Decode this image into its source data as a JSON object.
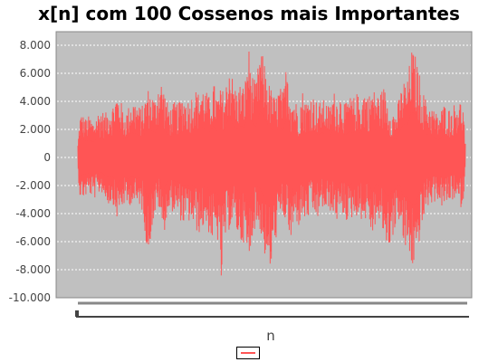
{
  "chart_data": {
    "type": "line",
    "title": "x[n] com 100 Cossenos mais Importantes",
    "xlabel": "n",
    "ylabel": "",
    "ylim": [
      -10000,
      9000
    ],
    "yticks": [
      {
        "value": 8000,
        "label": "8.000"
      },
      {
        "value": 6000,
        "label": "6.000"
      },
      {
        "value": 4000,
        "label": "4.000"
      },
      {
        "value": 2000,
        "label": "2.000"
      },
      {
        "value": 0,
        "label": "0"
      },
      {
        "value": -2000,
        "label": "-2.000"
      },
      {
        "value": -4000,
        "label": "-4.000"
      },
      {
        "value": -6000,
        "label": "-6.000"
      },
      {
        "value": -8000,
        "label": "-8.000"
      },
      {
        "value": -10000,
        "label": "-10.000"
      }
    ],
    "grid": true,
    "legend_position": "bottom-center",
    "series": [
      {
        "name": "",
        "color": "#ff5555",
        "envelope_n": [
          0,
          0.5,
          1,
          2,
          3,
          4,
          5,
          6,
          7,
          8,
          9,
          10,
          11,
          12,
          13,
          14,
          15,
          16,
          17,
          18,
          19,
          20,
          21,
          22,
          23,
          24,
          25,
          26,
          27,
          28,
          29,
          30,
          31,
          32,
          33,
          34,
          35,
          36,
          37,
          38,
          39,
          40,
          41,
          42,
          43,
          44,
          45,
          46,
          47,
          48,
          49,
          50,
          51,
          52,
          53,
          54,
          55,
          56,
          57,
          58,
          59,
          60,
          61,
          62,
          63,
          64,
          65,
          66,
          67,
          68,
          69,
          70,
          71,
          72,
          73,
          74,
          75,
          76,
          77,
          78,
          79,
          80,
          81,
          82,
          83,
          84,
          85,
          86,
          87,
          88,
          89,
          90,
          91,
          92,
          93,
          94,
          95,
          96,
          97,
          98,
          99,
          99.5,
          100
        ],
        "envelope_max": [
          1000,
          3000,
          3200,
          2800,
          3000,
          2600,
          3200,
          3500,
          3100,
          3600,
          3800,
          4600,
          4200,
          3000,
          3600,
          4200,
          4000,
          3600,
          3800,
          5000,
          4600,
          4200,
          5900,
          5200,
          4000,
          3600,
          4000,
          3900,
          4500,
          4200,
          4100,
          5100,
          4600,
          5200,
          4800,
          4300,
          5400,
          4400,
          5000,
          4600,
          7200,
          5600,
          4800,
          5400,
          5000,
          8100,
          6000,
          5200,
          7900,
          7000,
          5600,
          4800,
          4200,
          5200,
          4600,
          7200,
          4400,
          4200,
          3600,
          4800,
          4000,
          4600,
          4400,
          3800,
          4200,
          4000,
          3600,
          4800,
          4200,
          4600,
          3800,
          4400,
          4200,
          4600,
          4100,
          5000,
          4400,
          5000,
          4600,
          4600,
          5100,
          4000,
          3400,
          3200,
          4400,
          5600,
          5300,
          7800,
          7400,
          6200,
          4800,
          4000,
          3800,
          3400,
          3000,
          3600,
          4000,
          3400,
          3800,
          4200,
          4000,
          3500,
          1000
        ],
        "envelope_min": [
          -1000,
          -2800,
          -3000,
          -2800,
          -2600,
          -3000,
          -2800,
          -2400,
          -3000,
          -3400,
          -3200,
          -4400,
          -3800,
          -3400,
          -3600,
          -3200,
          -3600,
          -3400,
          -4200,
          -7600,
          -5200,
          -4000,
          -3600,
          -5800,
          -4200,
          -3800,
          -4000,
          -4200,
          -4800,
          -4800,
          -4600,
          -5000,
          -5500,
          -5200,
          -4800,
          -5600,
          -6200,
          -5800,
          -9200,
          -6000,
          -5200,
          -4600,
          -5400,
          -6200,
          -6000,
          -8300,
          -5600,
          -4900,
          -5200,
          -6800,
          -8200,
          -8100,
          -6000,
          -4600,
          -4400,
          -4600,
          -6400,
          -4300,
          -5000,
          -4200,
          -4800,
          -3800,
          -4200,
          -4400,
          -3600,
          -4000,
          -3800,
          -4200,
          -4600,
          -4000,
          -4400,
          -4800,
          -4200,
          -4200,
          -4400,
          -4600,
          -4200,
          -6000,
          -4400,
          -5000,
          -5600,
          -6800,
          -5800,
          -5200,
          -4400,
          -6600,
          -6700,
          -7800,
          -8100,
          -6200,
          -4800,
          -3600,
          -3400,
          -3200,
          -3000,
          -3600,
          -3400,
          -3200,
          -3000,
          -3400,
          -3600,
          -3000,
          -1000
        ]
      }
    ]
  }
}
